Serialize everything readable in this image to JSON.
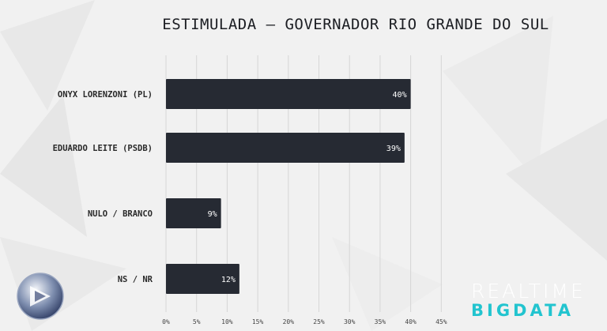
{
  "chart_data": {
    "type": "bar",
    "orientation": "horizontal",
    "title": "ESTIMULADA – GOVERNADOR RIO GRANDE DO SUL",
    "categories": [
      "ONYX LORENZONI (PL)",
      "EDUARDO LEITE (PSDB)",
      "NULO / BRANCO",
      "NS / NR"
    ],
    "values": [
      40,
      39,
      9,
      12
    ],
    "data_labels": [
      "40%",
      "39%",
      "9%",
      "12%"
    ],
    "x_ticks": [
      "0%",
      "5%",
      "10%",
      "15%",
      "20%",
      "25%",
      "30%",
      "35%",
      "40%",
      "45%"
    ],
    "xlim": [
      0,
      45
    ],
    "grid": "vertical",
    "bar_color": "#262a33",
    "legend": "none"
  },
  "logos": {
    "brand_line1": "REALTIME",
    "brand_line2": "BIGDATA",
    "brand_line2_color": "#22c4cf",
    "record": "record-logo-icon"
  }
}
